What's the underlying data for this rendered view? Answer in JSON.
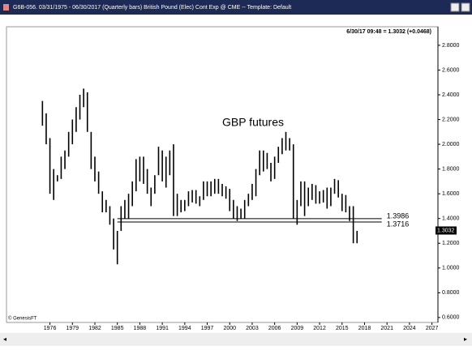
{
  "window_title": "G6B-056.  03/31/1975 - 06/30/2017 (Quarterly bars)  British Pound (Elec) Cont Exp @ CME  --  Template: Default",
  "chart_data": {
    "type": "ohlc",
    "info": "6/30/17 09:48 = 1.3032 (+0.0468)",
    "annotation": "GBP futures",
    "footer": "© GenesisFT",
    "color": "#000000",
    "x": [
      1975,
      1975.5,
      1976,
      1976.5,
      1977,
      1977.5,
      1978,
      1978.5,
      1979,
      1979.5,
      1980,
      1980.5,
      1981,
      1981.5,
      1982,
      1982.5,
      1983,
      1983.5,
      1984,
      1984.5,
      1985,
      1985.5,
      1986,
      1986.5,
      1987,
      1987.5,
      1988,
      1988.5,
      1989,
      1989.5,
      1990,
      1990.5,
      1991,
      1991.5,
      1992,
      1992.5,
      1993,
      1993.5,
      1994,
      1994.5,
      1995,
      1995.5,
      1996,
      1996.5,
      1997,
      1997.5,
      1998,
      1998.5,
      1999,
      1999.5,
      2000,
      2000.5,
      2001,
      2001.5,
      2002,
      2002.5,
      2003,
      2003.5,
      2004,
      2004.5,
      2005,
      2005.5,
      2006,
      2006.5,
      2007,
      2007.5,
      2008,
      2008.5,
      2009,
      2009.5,
      2010,
      2010.5,
      2011,
      2011.5,
      2012,
      2012.5,
      2013,
      2013.5,
      2014,
      2014.5,
      2015,
      2015.5,
      2016,
      2016.5,
      2017
    ],
    "high": [
      2.35,
      2.25,
      2.05,
      1.8,
      1.75,
      1.9,
      1.95,
      2.1,
      2.2,
      2.3,
      2.4,
      2.45,
      2.42,
      2.1,
      1.9,
      1.78,
      1.62,
      1.55,
      1.5,
      1.4,
      1.3,
      1.5,
      1.55,
      1.6,
      1.7,
      1.88,
      1.9,
      1.9,
      1.8,
      1.65,
      1.75,
      1.98,
      1.95,
      1.9,
      1.95,
      2.0,
      1.6,
      1.55,
      1.55,
      1.62,
      1.63,
      1.63,
      1.58,
      1.7,
      1.7,
      1.7,
      1.72,
      1.72,
      1.68,
      1.66,
      1.64,
      1.55,
      1.5,
      1.48,
      1.55,
      1.6,
      1.68,
      1.8,
      1.95,
      1.95,
      1.93,
      1.85,
      1.9,
      1.98,
      2.05,
      2.1,
      2.05,
      2.0,
      1.55,
      1.7,
      1.7,
      1.65,
      1.68,
      1.67,
      1.62,
      1.63,
      1.65,
      1.65,
      1.72,
      1.71,
      1.6,
      1.59,
      1.5,
      1.5,
      1.3
    ],
    "low": [
      2.15,
      2.0,
      1.6,
      1.55,
      1.7,
      1.72,
      1.8,
      1.9,
      2.0,
      2.1,
      2.2,
      2.3,
      2.1,
      1.8,
      1.7,
      1.6,
      1.45,
      1.45,
      1.35,
      1.15,
      1.03,
      1.3,
      1.4,
      1.4,
      1.5,
      1.62,
      1.7,
      1.68,
      1.6,
      1.5,
      1.6,
      1.75,
      1.7,
      1.65,
      1.75,
      1.42,
      1.42,
      1.45,
      1.46,
      1.5,
      1.53,
      1.52,
      1.5,
      1.55,
      1.58,
      1.58,
      1.6,
      1.6,
      1.58,
      1.56,
      1.46,
      1.4,
      1.38,
      1.4,
      1.4,
      1.5,
      1.55,
      1.58,
      1.75,
      1.78,
      1.8,
      1.7,
      1.72,
      1.85,
      1.92,
      1.95,
      1.95,
      1.4,
      1.35,
      1.5,
      1.42,
      1.5,
      1.55,
      1.52,
      1.52,
      1.53,
      1.48,
      1.5,
      1.6,
      1.57,
      1.46,
      1.45,
      1.38,
      1.2,
      1.2
    ],
    "reference_lines": [
      {
        "value": 1.3986,
        "start": 1985,
        "end": 2020.3
      },
      {
        "value": 1.3716,
        "start": 1985,
        "end": 2020.3
      }
    ],
    "last_price": 1.3032,
    "xlim": [
      1970.2,
      2027.8
    ],
    "xticks": [
      1976,
      1979,
      1982,
      1985,
      1988,
      1991,
      1994,
      1997,
      2000,
      2003,
      2006,
      2009,
      2012,
      2015,
      2018,
      2021,
      2024,
      2027
    ],
    "ylim": [
      0.56,
      2.95
    ],
    "yticks": [
      {
        "value": 2.8,
        "label": "2.8000"
      },
      {
        "value": 2.6,
        "label": "2.6000"
      },
      {
        "value": 2.4,
        "label": "2.4000"
      },
      {
        "value": 2.2,
        "label": "2.2000"
      },
      {
        "value": 2.0,
        "label": "2.0000"
      },
      {
        "value": 1.8,
        "label": "1.8000"
      },
      {
        "value": 1.6,
        "label": "1.6000"
      },
      {
        "value": 1.4,
        "label": "1.4000"
      },
      {
        "value": 1.2,
        "label": "1.2000"
      },
      {
        "value": 1.0,
        "label": "1.0000"
      },
      {
        "value": 0.8,
        "label": "0.8000"
      },
      {
        "value": 0.6,
        "label": "0.6000"
      }
    ],
    "grid": false
  }
}
